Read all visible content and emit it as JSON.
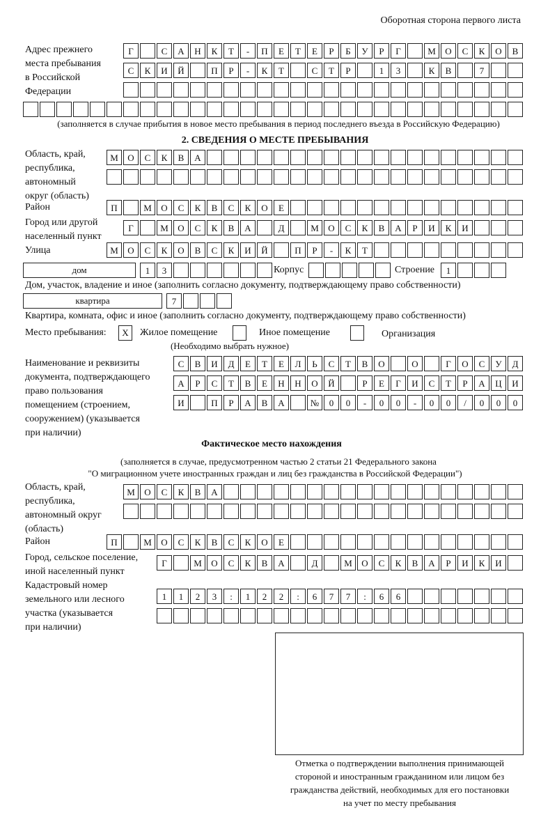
{
  "header": "Оборотная сторона первого листа",
  "prev_address": {
    "label": [
      "Адрес прежнего",
      "места пребывания",
      "в Российской",
      "Федерации"
    ],
    "rows": [
      "Г САНКТ-ПЕТЕРБУРГ МОСКОВ",
      "СКИЙ ПР-КТ СТР 13 КВ 7",
      "",
      ""
    ],
    "note": "(заполняется в случае прибытия в новое место пребывания в период последнего въезда в Российскую Федерацию)"
  },
  "section2": {
    "title": "2. СВЕДЕНИЯ О МЕСТЕ ПРЕБЫВАНИЯ",
    "region_label": [
      "Область, край,",
      "республика,",
      "автономный",
      "округ (область)"
    ],
    "region_rows": [
      "МОСКВА",
      ""
    ],
    "district_label": "Район",
    "district": "П МОСКВСКОЕ",
    "city_label": [
      "Город или другой",
      "населенный пункт"
    ],
    "city": "Г МОСКВА Д МОСКВАРИКИ",
    "street_label": "Улица",
    "street": "МОСКОВСКИЙ ПР-КТ",
    "house_type": "дом",
    "house": "13",
    "korpus_label": "Корпус",
    "korpus": "",
    "building_label": "Строение",
    "building": "1",
    "house_note": "Дом, участок, владение и иное (заполнить согласно документу, подтверждающему право собственности)",
    "flat_type": "квартира",
    "flat": "7",
    "flat_note": "Квартира, комната, офис и иное (заполнить согласно документу, подтверждающему право собственности)",
    "stay_label": "Место пребывания:",
    "stay_options": [
      {
        "label": "Жилое помещение",
        "mark": "X"
      },
      {
        "label": "Иное помещение",
        "mark": ""
      },
      {
        "label": "Организация",
        "mark": ""
      }
    ],
    "stay_note": "(Необходимо выбрать нужное)",
    "doc_label": [
      "Наименование и реквизиты",
      "документа, подтверждающего",
      "право пользования",
      "помещением (строением,",
      "сооружением) (указывается",
      "при наличии)"
    ],
    "doc_rows": [
      "СВИДЕТЕЛЬСТВО О ГОСУД",
      "АРСТВЕННОЙ РЕГИСТРАЦИ",
      "И ПРАВА №00-00-00/000"
    ]
  },
  "actual": {
    "title": "Фактическое место нахождения",
    "note1": "(заполняется в случае, предусмотренном частью 2 статьи 21 Федерального закона",
    "note2": "\"О миграционном учете иностранных граждан и лиц без гражданства в Российской Федерации\")",
    "region_label": [
      "Область, край,",
      "республика,",
      "автономный округ",
      "(область)"
    ],
    "region_rows": [
      "МОСКВА",
      ""
    ],
    "district_label": "Район",
    "district": "П МОСКВСКОЕ",
    "city_label": [
      "Город, сельское поселение,",
      "иной населенный пункт"
    ],
    "city": "Г МОСКВА Д МОСКВАРИКИ",
    "cadastre_label": [
      "Кадастровый номер",
      "земельного или лесного",
      "участка (указывается",
      "при наличии)"
    ],
    "cadastre_rows": [
      "1123:122:677:66",
      ""
    ]
  },
  "stamp_caption": [
    "Отметка о подтверждении выполнения принимающей",
    "стороной и иностранным гражданином или лицом без",
    "гражданства действий, необходимых для его постановки",
    "на учет по месту пребывания"
  ]
}
